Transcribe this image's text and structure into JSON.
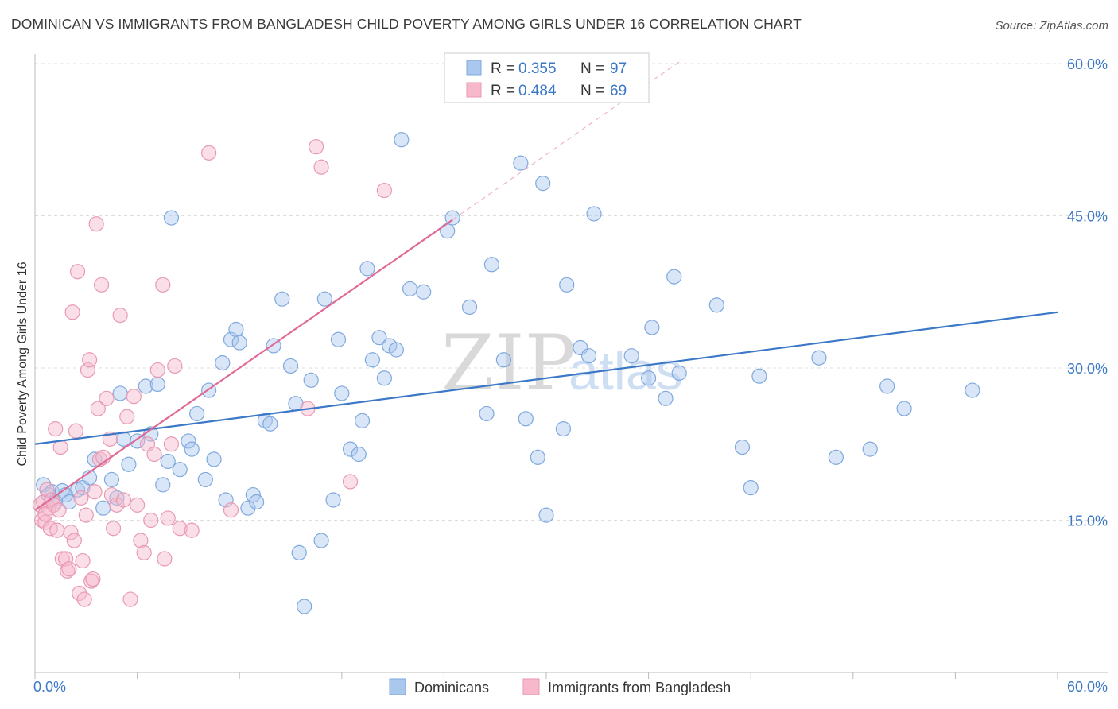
{
  "header": {
    "title": "DOMINICAN VS IMMIGRANTS FROM BANGLADESH CHILD POVERTY AMONG GIRLS UNDER 16 CORRELATION CHART",
    "source": "Source: ZipAtlas.com"
  },
  "watermark": {
    "zip": "ZIP",
    "atlas": "atlas"
  },
  "legend": {
    "rows": [
      {
        "r_label": "R =",
        "r_value": "0.355",
        "n_label": "N =",
        "n_value": "97",
        "color": "#aac8ee"
      },
      {
        "r_label": "R =",
        "r_value": "0.484",
        "n_label": "N =",
        "n_value": "69",
        "color": "#f7b8cb"
      }
    ]
  },
  "bottom_legend": [
    {
      "label": "Dominicans",
      "color": "#aac8ee"
    },
    {
      "label": "Immigrants from Bangladesh",
      "color": "#f7b8cb"
    }
  ],
  "chart_data": {
    "type": "scatter",
    "title": "DOMINICAN VS IMMIGRANTS FROM BANGLADESH CHILD POVERTY AMONG GIRLS UNDER 16 CORRELATION CHART",
    "xlabel": "",
    "ylabel": "Child Poverty Among Girls Under 16",
    "xlim": [
      0,
      60
    ],
    "ylim": [
      0,
      62
    ],
    "x_tick_labels": [
      {
        "value": 0,
        "label": "0.0%"
      },
      {
        "value": 60,
        "label": "60.0%"
      }
    ],
    "y_tick_labels": [
      {
        "value": 15,
        "label": "15.0%"
      },
      {
        "value": 30,
        "label": "30.0%"
      },
      {
        "value": 45,
        "label": "45.0%"
      },
      {
        "value": 60,
        "label": "60.0%"
      }
    ],
    "grid": "horizontal dashed",
    "legend_position": "top-center",
    "series": [
      {
        "name": "Dominicans",
        "color": "#3b78c7",
        "marker_fill": "#aac8ee",
        "trend": {
          "x": [
            0,
            60
          ],
          "y": [
            22.5,
            35.5
          ],
          "style": "solid"
        },
        "points": [
          [
            0.5,
            18.5
          ],
          [
            0.8,
            17.5
          ],
          [
            1.0,
            17.8
          ],
          [
            1.2,
            16.8
          ],
          [
            1.6,
            17.9
          ],
          [
            1.8,
            17.5
          ],
          [
            2.0,
            16.8
          ],
          [
            2.5,
            18.0
          ],
          [
            2.8,
            18.2
          ],
          [
            3.2,
            19.2
          ],
          [
            3.5,
            21.0
          ],
          [
            4.0,
            16.2
          ],
          [
            4.5,
            19.0
          ],
          [
            4.8,
            17.2
          ],
          [
            5.0,
            27.5
          ],
          [
            5.2,
            23.0
          ],
          [
            5.5,
            20.5
          ],
          [
            6.0,
            22.8
          ],
          [
            6.5,
            28.2
          ],
          [
            6.8,
            23.5
          ],
          [
            7.2,
            28.4
          ],
          [
            7.5,
            18.5
          ],
          [
            7.8,
            20.8
          ],
          [
            8.0,
            44.8
          ],
          [
            8.5,
            20.0
          ],
          [
            9.0,
            22.8
          ],
          [
            9.2,
            22.0
          ],
          [
            9.5,
            25.5
          ],
          [
            10.0,
            19.0
          ],
          [
            10.2,
            27.8
          ],
          [
            10.5,
            21.0
          ],
          [
            11.0,
            30.5
          ],
          [
            11.2,
            17.0
          ],
          [
            11.5,
            32.8
          ],
          [
            11.8,
            33.8
          ],
          [
            12.0,
            32.5
          ],
          [
            12.5,
            16.2
          ],
          [
            12.8,
            17.5
          ],
          [
            13.0,
            16.8
          ],
          [
            13.5,
            24.8
          ],
          [
            13.8,
            24.5
          ],
          [
            14.0,
            32.2
          ],
          [
            14.5,
            36.8
          ],
          [
            15.0,
            30.2
          ],
          [
            15.3,
            26.5
          ],
          [
            15.5,
            11.8
          ],
          [
            15.8,
            6.5
          ],
          [
            16.2,
            28.8
          ],
          [
            16.8,
            13.0
          ],
          [
            17.0,
            36.8
          ],
          [
            17.5,
            17.0
          ],
          [
            17.8,
            32.8
          ],
          [
            18.0,
            27.5
          ],
          [
            18.5,
            22.0
          ],
          [
            19.0,
            21.5
          ],
          [
            19.2,
            24.8
          ],
          [
            19.5,
            39.8
          ],
          [
            19.8,
            30.8
          ],
          [
            20.2,
            33.0
          ],
          [
            20.5,
            29.0
          ],
          [
            20.8,
            32.2
          ],
          [
            21.2,
            31.8
          ],
          [
            21.5,
            52.5
          ],
          [
            22.0,
            37.8
          ],
          [
            22.8,
            37.5
          ],
          [
            24.2,
            43.5
          ],
          [
            24.5,
            44.8
          ],
          [
            25.5,
            36.0
          ],
          [
            26.5,
            25.5
          ],
          [
            26.8,
            40.2
          ],
          [
            27.5,
            30.8
          ],
          [
            28.5,
            50.2
          ],
          [
            28.8,
            25.0
          ],
          [
            29.5,
            21.2
          ],
          [
            29.8,
            48.2
          ],
          [
            30.0,
            15.5
          ],
          [
            31.0,
            24.0
          ],
          [
            31.2,
            38.2
          ],
          [
            32.0,
            32.0
          ],
          [
            32.5,
            31.2
          ],
          [
            32.8,
            45.2
          ],
          [
            35.0,
            31.2
          ],
          [
            36.0,
            29.0
          ],
          [
            36.2,
            34.0
          ],
          [
            37.0,
            27.0
          ],
          [
            37.5,
            39.0
          ],
          [
            37.8,
            29.5
          ],
          [
            40.0,
            36.2
          ],
          [
            41.5,
            22.2
          ],
          [
            42.0,
            18.2
          ],
          [
            42.5,
            29.2
          ],
          [
            46.0,
            31.0
          ],
          [
            47.0,
            21.2
          ],
          [
            49.0,
            22.0
          ],
          [
            50.0,
            28.2
          ],
          [
            51.0,
            26.0
          ],
          [
            55.0,
            27.8
          ]
        ]
      },
      {
        "name": "Immigrants from Bangladesh",
        "color": "#e06a95",
        "marker_fill": "#f7b8cb",
        "trend": {
          "x": [
            0,
            24.5
          ],
          "y": [
            16.0,
            44.6
          ],
          "style": "solid",
          "extension": {
            "x": [
              24.5,
              38
            ],
            "y": [
              44.6,
              60.4
            ],
            "style": "dashed"
          }
        },
        "points": [
          [
            0.3,
            16.5
          ],
          [
            0.4,
            15.0
          ],
          [
            0.5,
            16.8
          ],
          [
            0.6,
            14.8
          ],
          [
            0.7,
            18.0
          ],
          [
            0.8,
            16.2
          ],
          [
            0.9,
            14.2
          ],
          [
            1.0,
            17.0
          ],
          [
            1.1,
            16.5
          ],
          [
            1.2,
            24.0
          ],
          [
            1.3,
            14.0
          ],
          [
            1.5,
            22.2
          ],
          [
            1.6,
            11.2
          ],
          [
            1.8,
            11.2
          ],
          [
            1.9,
            10.0
          ],
          [
            2.0,
            10.2
          ],
          [
            2.1,
            13.8
          ],
          [
            2.2,
            35.5
          ],
          [
            2.3,
            13.0
          ],
          [
            2.4,
            23.8
          ],
          [
            2.5,
            39.5
          ],
          [
            2.6,
            7.8
          ],
          [
            2.7,
            17.2
          ],
          [
            2.8,
            11.0
          ],
          [
            2.9,
            7.2
          ],
          [
            3.0,
            15.5
          ],
          [
            3.1,
            29.8
          ],
          [
            3.2,
            30.8
          ],
          [
            3.3,
            9.0
          ],
          [
            3.4,
            9.2
          ],
          [
            3.5,
            17.8
          ],
          [
            3.6,
            44.2
          ],
          [
            3.7,
            26.0
          ],
          [
            3.8,
            21.0
          ],
          [
            3.9,
            38.2
          ],
          [
            4.0,
            21.2
          ],
          [
            4.2,
            27.0
          ],
          [
            4.4,
            23.0
          ],
          [
            4.6,
            14.2
          ],
          [
            4.8,
            16.5
          ],
          [
            5.0,
            35.2
          ],
          [
            5.2,
            17.0
          ],
          [
            5.4,
            25.2
          ],
          [
            5.6,
            7.2
          ],
          [
            5.8,
            27.2
          ],
          [
            6.0,
            16.5
          ],
          [
            6.2,
            13.0
          ],
          [
            6.4,
            11.8
          ],
          [
            6.6,
            22.5
          ],
          [
            6.8,
            15.0
          ],
          [
            7.0,
            21.5
          ],
          [
            7.2,
            29.8
          ],
          [
            7.5,
            38.2
          ],
          [
            7.6,
            11.2
          ],
          [
            7.8,
            15.2
          ],
          [
            8.0,
            22.5
          ],
          [
            8.2,
            30.2
          ],
          [
            8.5,
            14.2
          ],
          [
            9.2,
            14.0
          ],
          [
            10.2,
            51.2
          ],
          [
            11.5,
            16.0
          ],
          [
            16.0,
            26.0
          ],
          [
            16.5,
            51.8
          ],
          [
            16.8,
            49.8
          ],
          [
            18.5,
            18.8
          ],
          [
            20.5,
            47.5
          ],
          [
            4.5,
            17.5
          ],
          [
            1.4,
            16.0
          ],
          [
            0.6,
            15.6
          ]
        ]
      }
    ]
  }
}
